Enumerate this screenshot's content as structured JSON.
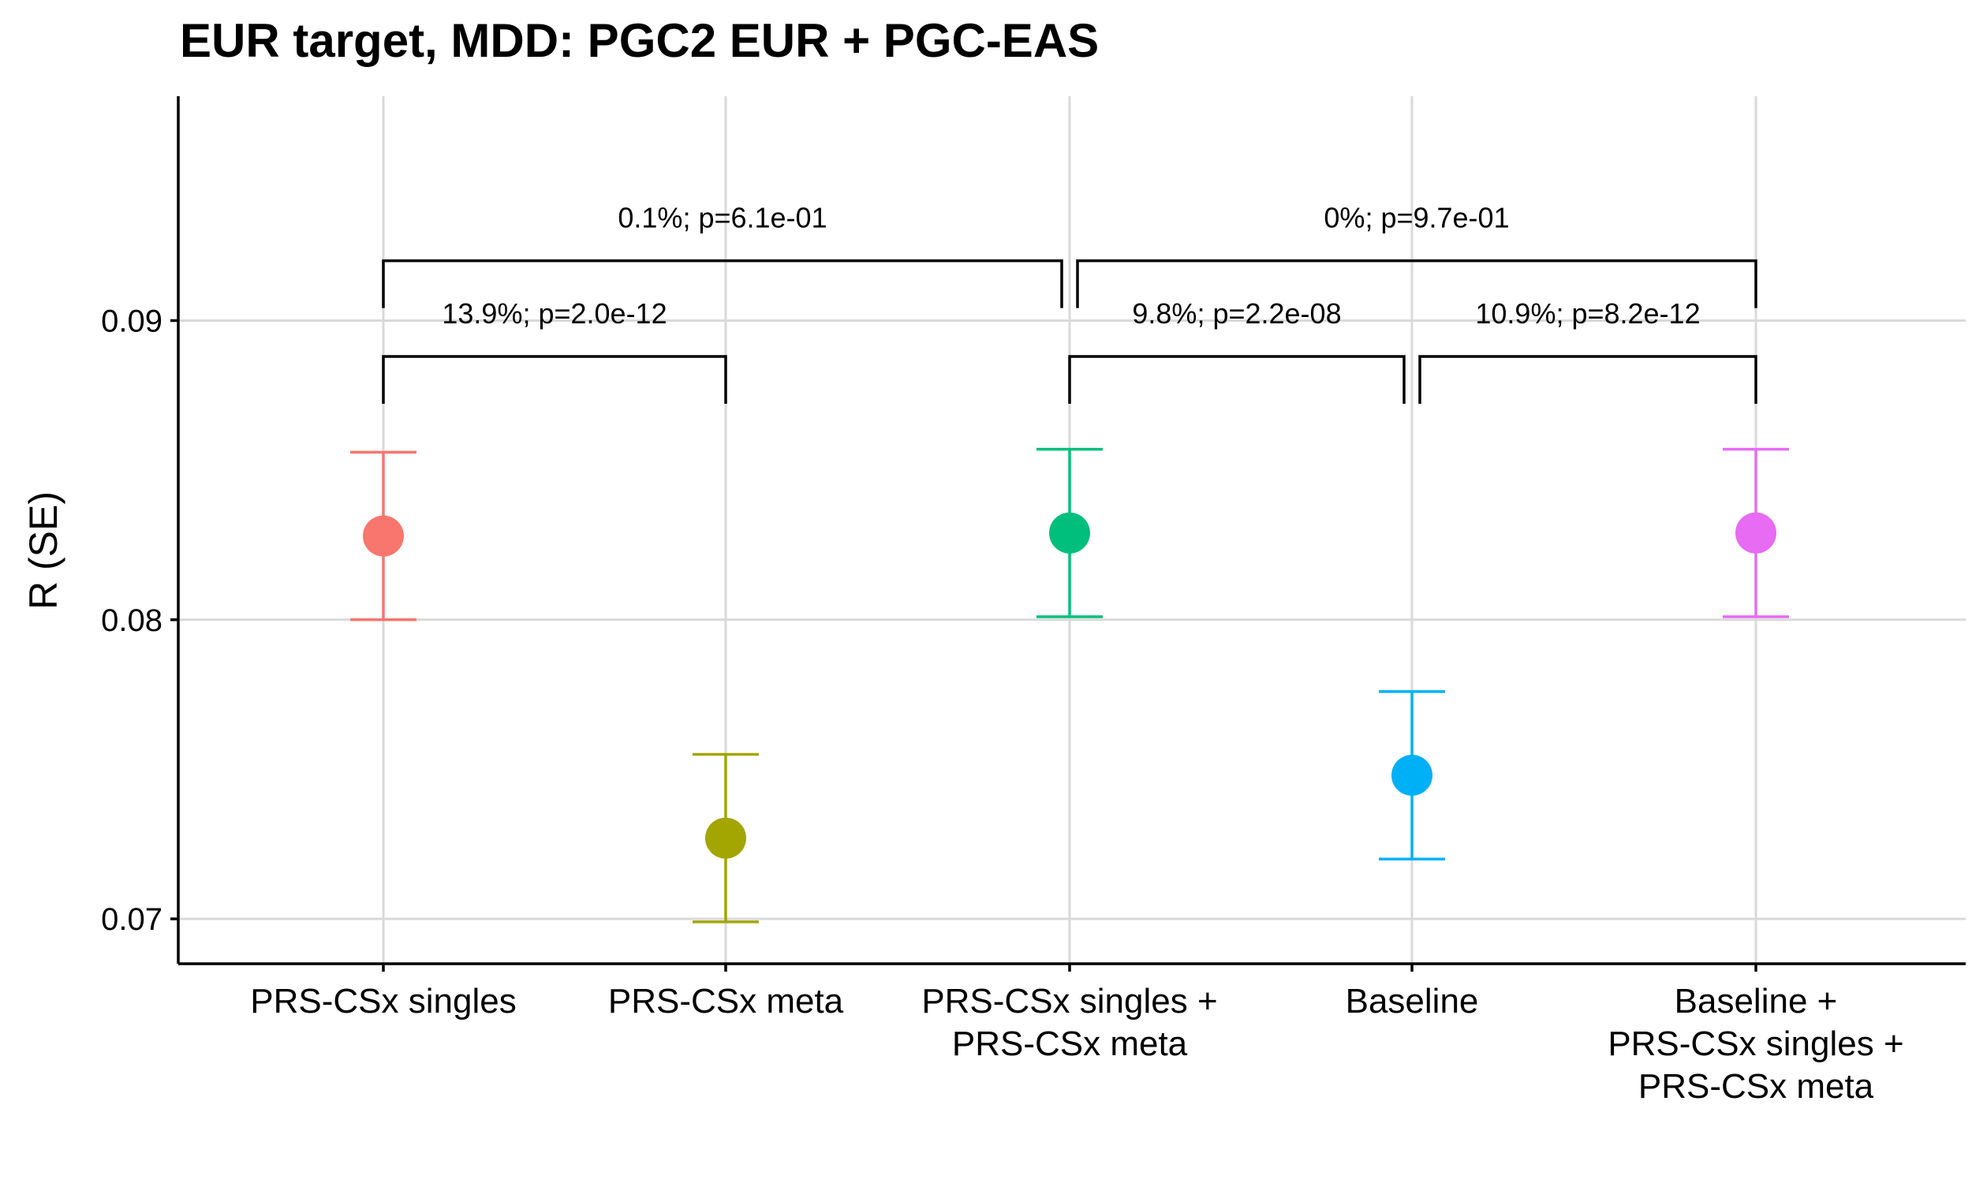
{
  "chart_data": {
    "type": "scatter",
    "title": "EUR target, MDD: PGC2 EUR + PGC-EAS",
    "xlabel": "",
    "ylabel": "R (SE)",
    "ylim": [
      0.0685,
      0.0975
    ],
    "yticks": [
      0.07,
      0.08,
      0.09
    ],
    "ytick_labels": [
      "0.07",
      "0.08",
      "0.09"
    ],
    "grid": true,
    "legend": "none",
    "categories": [
      [
        "PRS-CSx singles"
      ],
      [
        "PRS-CSx meta"
      ],
      [
        "PRS-CSx singles +",
        "PRS-CSx meta"
      ],
      [
        "Baseline"
      ],
      [
        "Baseline +",
        "PRS-CSx singles +",
        "PRS-CSx meta"
      ]
    ],
    "points": [
      {
        "r": 0.0828,
        "lower": 0.08,
        "upper": 0.0856,
        "color": "#F8766D"
      },
      {
        "r": 0.0727,
        "lower": 0.0699,
        "upper": 0.0755,
        "color": "#A3A500"
      },
      {
        "r": 0.0829,
        "lower": 0.0801,
        "upper": 0.0857,
        "color": "#00BF7D"
      },
      {
        "r": 0.0748,
        "lower": 0.072,
        "upper": 0.0776,
        "color": "#00B0F6"
      },
      {
        "r": 0.0829,
        "lower": 0.0801,
        "upper": 0.0857,
        "color": "#E76BF3"
      }
    ],
    "comparisons": [
      {
        "from": 0,
        "to": 1,
        "y": 0.0888,
        "label": "13.9%; p=2.0e-12"
      },
      {
        "from": 2,
        "to": 3,
        "y": 0.0888,
        "label": "9.8%; p=2.2e-08"
      },
      {
        "from": 3,
        "to": 4,
        "y": 0.0888,
        "label": "10.9%; p=8.2e-12"
      },
      {
        "from": 0,
        "to": 2,
        "y": 0.092,
        "label": "0.1%; p=6.1e-01"
      },
      {
        "from": 2,
        "to": 4,
        "y": 0.092,
        "label": "0%; p=9.7e-01"
      }
    ]
  }
}
